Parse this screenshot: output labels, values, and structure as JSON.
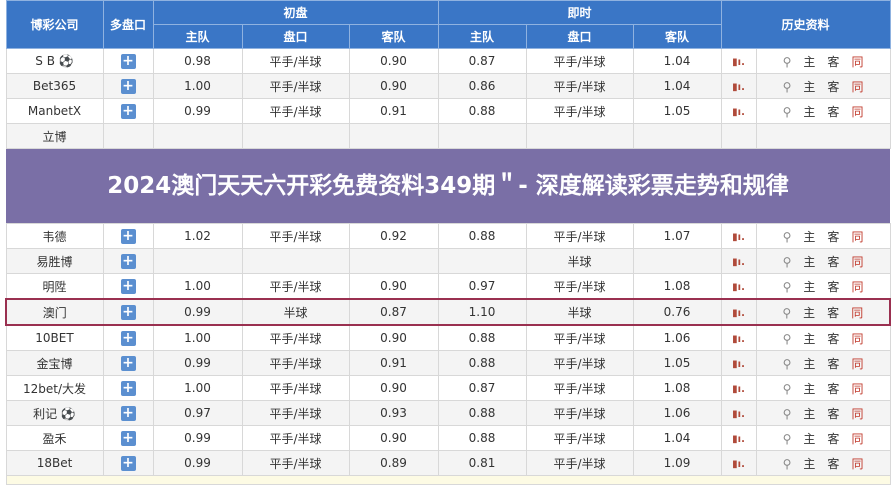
{
  "header": {
    "company": "博彩公司",
    "multi": "多盘口",
    "initial": "初盘",
    "live": "即时",
    "history": "历史资料",
    "home": "主队",
    "line": "盘口",
    "away": "客队"
  },
  "history_links": {
    "search_icon": "magnifier",
    "home": "主",
    "away": "客",
    "same": "同"
  },
  "rows": [
    {
      "name": "S B ⚽",
      "h": "0.98",
      "p": "平手/半球",
      "a": "0.90",
      "lh": "0.87",
      "lp": "平手/半球",
      "la": "1.04"
    },
    {
      "name": "Bet365",
      "h": "1.00",
      "p": "平手/半球",
      "a": "0.90",
      "lh": "0.86",
      "lp": "平手/半球",
      "la": "1.04"
    },
    {
      "name": "ManbetX",
      "h": "0.99",
      "p": "平手/半球",
      "a": "0.91",
      "lh": "0.88",
      "lp": "平手/半球",
      "la": "1.05"
    },
    {
      "name": "立博",
      "h": "",
      "p": "",
      "a": "",
      "lh": "",
      "lp": "",
      "la": ""
    },
    {
      "name": "韦德",
      "h": "1.02",
      "p": "平手/半球",
      "a": "0.92",
      "lh": "0.88",
      "lp": "平手/半球",
      "la": "1.07"
    },
    {
      "name": "易胜博",
      "h": "",
      "p": "",
      "a": "",
      "lh": "",
      "lp": "半球",
      "la": ""
    },
    {
      "name": "明陞",
      "h": "1.00",
      "p": "平手/半球",
      "a": "0.90",
      "lh": "0.97",
      "lp": "平手/半球",
      "la": "1.08"
    },
    {
      "name": "澳门",
      "h": "0.99",
      "p": "半球",
      "a": "0.87",
      "lh": "1.10",
      "lp": "半球",
      "la": "0.76"
    },
    {
      "name": "10BET",
      "h": "1.00",
      "p": "平手/半球",
      "a": "0.90",
      "lh": "0.88",
      "lp": "平手/半球",
      "la": "1.06"
    },
    {
      "name": "金宝博",
      "h": "0.99",
      "p": "平手/半球",
      "a": "0.91",
      "lh": "0.88",
      "lp": "平手/半球",
      "la": "1.05"
    },
    {
      "name": "12bet/大发",
      "h": "1.00",
      "p": "平手/半球",
      "a": "0.90",
      "lh": "0.87",
      "lp": "平手/半球",
      "la": "1.08"
    },
    {
      "name": "利记 ⚽",
      "h": "0.97",
      "p": "平手/半球",
      "a": "0.93",
      "lh": "0.88",
      "lp": "平手/半球",
      "la": "1.06"
    },
    {
      "name": "盈禾",
      "h": "0.99",
      "p": "平手/半球",
      "a": "0.90",
      "lh": "0.88",
      "lp": "平手/半球",
      "la": "1.04"
    },
    {
      "name": "18Bet",
      "h": "0.99",
      "p": "平手/半球",
      "a": "0.89",
      "lh": "0.81",
      "lp": "平手/半球",
      "la": "1.09"
    }
  ],
  "overlay_title": "2024澳门天天六开彩免费资料349期＂- 深度解读彩票走势和规律"
}
